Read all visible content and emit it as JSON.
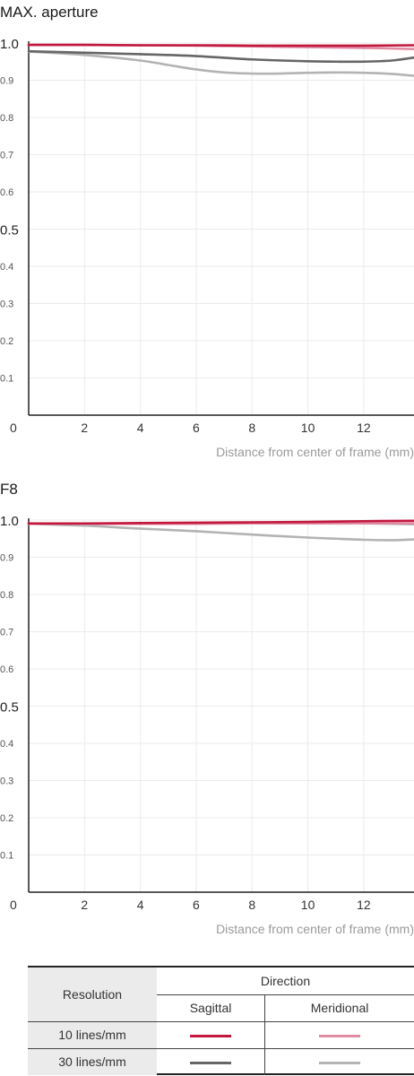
{
  "chart_data": [
    {
      "type": "line",
      "title": "MAX. aperture",
      "xlabel": "Distance from center of frame (mm)",
      "ylabel": "",
      "xlim": [
        0,
        13.8
      ],
      "ylim": [
        0,
        1.0
      ],
      "xticks": [
        "2",
        "4",
        "6",
        "8",
        "10",
        "12"
      ],
      "x_origin_label": "0",
      "yticks": [
        {
          "value": 1.0,
          "label": "1.0",
          "major": true
        },
        {
          "value": 0.9,
          "label": "0.9",
          "major": false
        },
        {
          "value": 0.8,
          "label": "0.8",
          "major": false
        },
        {
          "value": 0.7,
          "label": "0.7",
          "major": false
        },
        {
          "value": 0.6,
          "label": "0.6",
          "major": false
        },
        {
          "value": 0.5,
          "label": "0.5",
          "major": true
        },
        {
          "value": 0.4,
          "label": "0.4",
          "major": false
        },
        {
          "value": 0.3,
          "label": "0.3",
          "major": false
        },
        {
          "value": 0.2,
          "label": "0.2",
          "major": false
        },
        {
          "value": 0.1,
          "label": "0.1",
          "major": false
        }
      ],
      "grid": true,
      "series": [
        {
          "resolution": "10 lines/mm",
          "direction": "Sagittal",
          "color": "#c2183e",
          "x": [
            0,
            2,
            4,
            6,
            8,
            10,
            12,
            13.8
          ],
          "y": [
            0.995,
            0.995,
            0.994,
            0.994,
            0.993,
            0.993,
            0.993,
            0.994
          ]
        },
        {
          "resolution": "10 lines/mm",
          "direction": "Meridional",
          "color": "#e08aa2",
          "x": [
            0,
            2,
            4,
            6,
            8,
            10,
            12,
            13.8
          ],
          "y": [
            0.995,
            0.995,
            0.994,
            0.993,
            0.991,
            0.989,
            0.987,
            0.984
          ]
        },
        {
          "resolution": "30 lines/mm",
          "direction": "Sagittal",
          "color": "#666666",
          "x": [
            0,
            2,
            4,
            6,
            8,
            10,
            11,
            12,
            13,
            13.8
          ],
          "y": [
            0.978,
            0.974,
            0.97,
            0.965,
            0.956,
            0.951,
            0.95,
            0.95,
            0.953,
            0.961
          ]
        },
        {
          "resolution": "30 lines/mm",
          "direction": "Meridional",
          "color": "#b3b3b3",
          "x": [
            0,
            2,
            4,
            5,
            6,
            7,
            8,
            9,
            10,
            11,
            12,
            13,
            13.8
          ],
          "y": [
            0.977,
            0.968,
            0.953,
            0.941,
            0.929,
            0.921,
            0.918,
            0.918,
            0.92,
            0.921,
            0.92,
            0.917,
            0.912
          ]
        }
      ]
    },
    {
      "type": "line",
      "title": "F8",
      "xlabel": "Distance from center of frame (mm)",
      "ylabel": "",
      "xlim": [
        0,
        13.8
      ],
      "ylim": [
        0,
        1.0
      ],
      "xticks": [
        "2",
        "4",
        "6",
        "8",
        "10",
        "12"
      ],
      "x_origin_label": "0",
      "yticks": [
        {
          "value": 1.0,
          "label": "1.0",
          "major": true
        },
        {
          "value": 0.9,
          "label": "0.9",
          "major": false
        },
        {
          "value": 0.8,
          "label": "0.8",
          "major": false
        },
        {
          "value": 0.7,
          "label": "0.7",
          "major": false
        },
        {
          "value": 0.6,
          "label": "0.6",
          "major": false
        },
        {
          "value": 0.5,
          "label": "0.5",
          "major": true
        },
        {
          "value": 0.4,
          "label": "0.4",
          "major": false
        },
        {
          "value": 0.3,
          "label": "0.3",
          "major": false
        },
        {
          "value": 0.2,
          "label": "0.2",
          "major": false
        },
        {
          "value": 0.1,
          "label": "0.1",
          "major": false
        }
      ],
      "grid": true,
      "series": [
        {
          "resolution": "10 lines/mm",
          "direction": "Sagittal",
          "color": "#c2183e",
          "x": [
            0,
            2,
            4,
            6,
            8,
            10,
            12,
            13.8
          ],
          "y": [
            0.991,
            0.991,
            0.992,
            0.993,
            0.994,
            0.995,
            0.997,
            0.998
          ]
        },
        {
          "resolution": "10 lines/mm",
          "direction": "Meridional",
          "color": "#e08aa2",
          "x": [
            0,
            2,
            4,
            6,
            8,
            10,
            12,
            13.8
          ],
          "y": [
            0.99,
            0.99,
            0.99,
            0.99,
            0.991,
            0.991,
            0.991,
            0.991
          ]
        },
        {
          "resolution": "30 lines/mm",
          "direction": "Sagittal",
          "color": "#666666",
          "x": [
            0,
            2,
            4,
            6,
            8,
            10,
            12,
            13.8
          ],
          "y": [
            0.991,
            0.991,
            0.991,
            0.992,
            0.992,
            0.992,
            0.991,
            0.99
          ]
        },
        {
          "resolution": "30 lines/mm",
          "direction": "Meridional",
          "color": "#b3b3b3",
          "x": [
            0,
            2,
            4,
            6,
            8,
            10,
            11,
            12,
            13,
            13.8
          ],
          "y": [
            0.99,
            0.985,
            0.977,
            0.97,
            0.961,
            0.953,
            0.95,
            0.947,
            0.946,
            0.948
          ]
        }
      ]
    }
  ],
  "legend": {
    "resolution_header": "Resolution",
    "direction_header": "Direction",
    "sagittal_label": "Sagittal",
    "meridional_label": "Meridional",
    "rows": [
      {
        "label": "10 lines/mm",
        "sagittal_color": "#c2183e",
        "meridional_color": "#e08aa2"
      },
      {
        "label": "30 lines/mm",
        "sagittal_color": "#666666",
        "meridional_color": "#b3b3b3"
      }
    ]
  }
}
